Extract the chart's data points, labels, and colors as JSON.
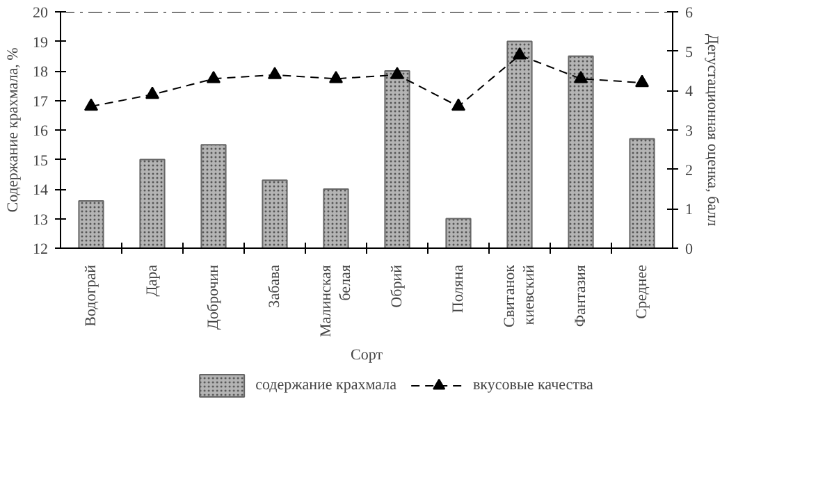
{
  "chart_data": {
    "type": "bar",
    "xlabel": "Сорт",
    "ylabel": "Содержание крахмала, %",
    "y2label": "Дегустационная оценка, балл",
    "categories": [
      "Водограй",
      "Дара",
      "Доброчин",
      "Забава",
      "Малинская\nбелая",
      "Обрий",
      "Поляна",
      "Свитанок\nкиевский",
      "Фантазия",
      "Среднее"
    ],
    "series": [
      {
        "name": "содержание крахмала",
        "type": "bar",
        "color": "#b4b4b4",
        "values": [
          13.6,
          15.0,
          15.5,
          14.3,
          14.0,
          18.0,
          13.0,
          19.0,
          18.5,
          15.7
        ]
      },
      {
        "name": "вкусовые качества",
        "type": "line",
        "axis": "y2",
        "color": "#000000",
        "marker": "triangle",
        "line_style": "dashed",
        "values": [
          3.6,
          3.9,
          4.3,
          4.4,
          4.3,
          4.4,
          3.6,
          4.9,
          4.3,
          4.2
        ]
      }
    ],
    "ylim": [
      12,
      20
    ],
    "yticks": [
      12,
      13,
      14,
      15,
      16,
      17,
      18,
      19,
      20
    ],
    "y2lim": [
      0,
      6
    ],
    "y2ticks": [
      0,
      1,
      2,
      3,
      4,
      5,
      6
    ],
    "ref_lines": [
      {
        "axis": "y",
        "value": 20,
        "line_style": "dashdot",
        "color": "#000000"
      }
    ],
    "grid": false,
    "legend": "bottom"
  }
}
